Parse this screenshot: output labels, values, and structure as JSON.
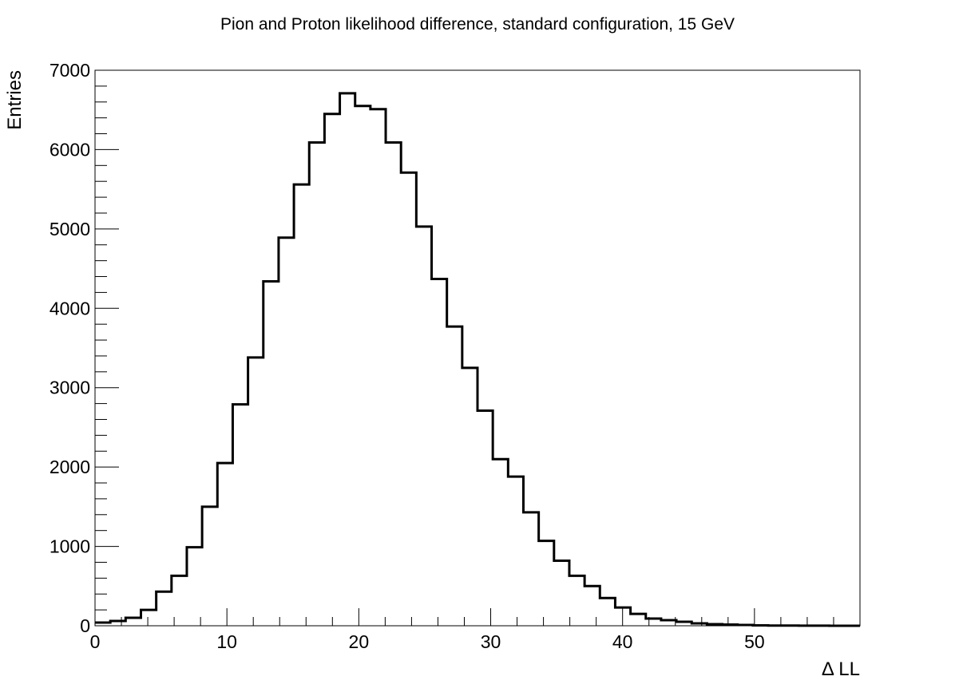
{
  "chart_data": {
    "type": "bar",
    "style": "step-histogram",
    "title": "Pion and Proton likelihood difference, standard configuration, 15 GeV",
    "xlabel": "Δ LL",
    "ylabel": "Entries",
    "xlim": [
      0,
      58
    ],
    "ylim": [
      0,
      7000
    ],
    "x_ticks": [
      0,
      10,
      20,
      30,
      40,
      50
    ],
    "y_ticks": [
      0,
      1000,
      2000,
      3000,
      4000,
      5000,
      6000,
      7000
    ],
    "bin_width": 1.16,
    "bin_edges_start": 0,
    "values": [
      40,
      60,
      100,
      200,
      430,
      630,
      990,
      1500,
      2050,
      2790,
      3380,
      4340,
      4890,
      5560,
      6090,
      6450,
      6710,
      6550,
      6510,
      6090,
      5710,
      5030,
      4370,
      3770,
      3250,
      2710,
      2100,
      1880,
      1430,
      1070,
      820,
      630,
      500,
      350,
      230,
      150,
      90,
      70,
      50,
      30,
      20,
      15,
      10,
      5,
      3,
      2,
      1,
      1,
      0,
      0
    ],
    "legend": "none",
    "grid": false,
    "line_color": "#000000"
  }
}
